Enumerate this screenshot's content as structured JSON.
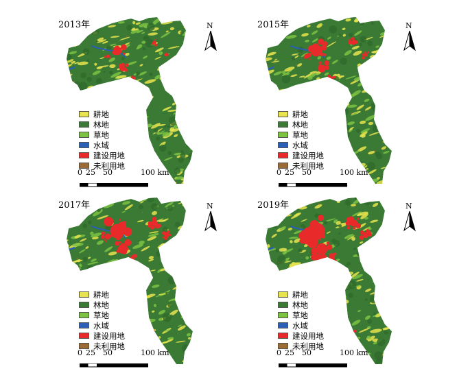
{
  "legend": [
    {
      "label": "耕地",
      "color": "#e8e44f"
    },
    {
      "label": "林地",
      "color": "#3a7a34"
    },
    {
      "label": "草地",
      "color": "#7dc242"
    },
    {
      "label": "水域",
      "color": "#2a5fb5"
    },
    {
      "label": "建设用地",
      "color": "#e82a2a"
    },
    {
      "label": "未利用地",
      "color": "#9a6b35"
    }
  ],
  "north_label": "N",
  "scale": {
    "ticks": [
      "0",
      "25",
      "50",
      "100 km"
    ]
  },
  "panels": [
    {
      "year": "2013年",
      "urban_level": 1
    },
    {
      "year": "2015年",
      "urban_level": 2
    },
    {
      "year": "2017年",
      "urban_level": 3
    },
    {
      "year": "2019年",
      "urban_level": 4
    }
  ]
}
